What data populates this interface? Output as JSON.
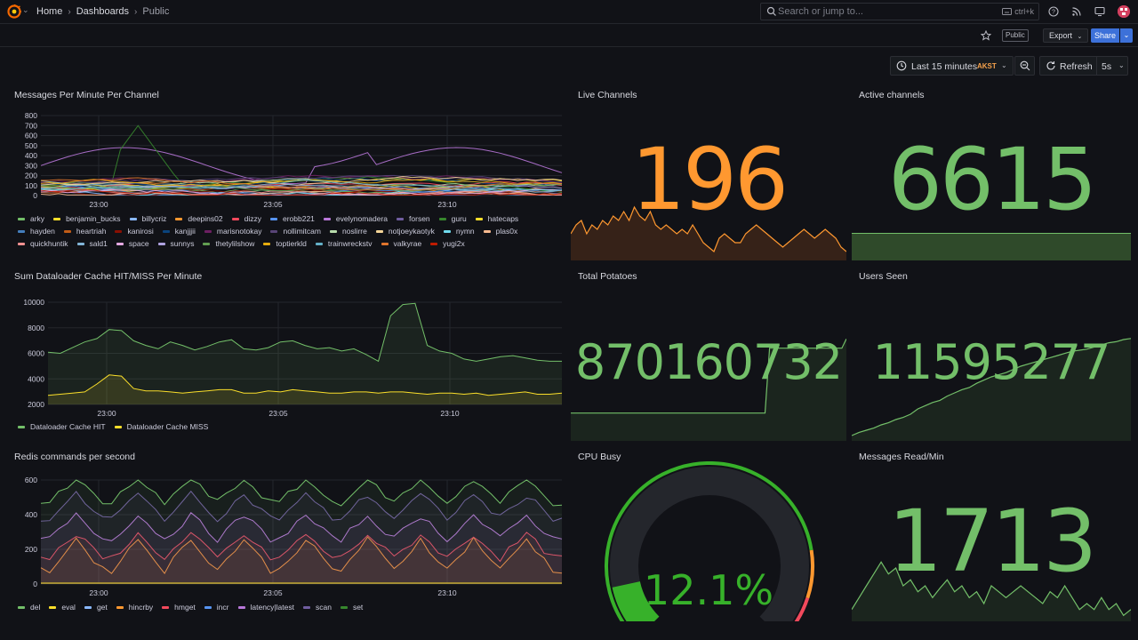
{
  "breadcrumb": {
    "home": "Home",
    "dashboards": "Dashboards",
    "current": "Public"
  },
  "search": {
    "placeholder": "Search or jump to...",
    "shortcut": "ctrl+k"
  },
  "toolbar": {
    "public_badge": "Public",
    "export_label": "Export",
    "share_label": "Share"
  },
  "time": {
    "range_label": "Last 15 minutes",
    "timezone": "AKST",
    "refresh_label": "Refresh",
    "interval": "5s"
  },
  "colors": {
    "green": "#73bf69",
    "orange": "#ff9830",
    "panel_bg": "#181b1f"
  },
  "panels": {
    "messages_per_minute": {
      "title": "Messages Per Minute Per Channel",
      "y_ticks": [
        "800",
        "700",
        "600",
        "500",
        "400",
        "300",
        "200",
        "100",
        "0"
      ],
      "x_ticks": [
        "23:00",
        "23:05",
        "23:10"
      ],
      "legend": [
        {
          "name": "arky",
          "color": "#73bf69"
        },
        {
          "name": "benjamin_bucks",
          "color": "#fade2a"
        },
        {
          "name": "billycriz",
          "color": "#8ab8ff"
        },
        {
          "name": "deepins02",
          "color": "#ff9830"
        },
        {
          "name": "dizzy",
          "color": "#f2495c"
        },
        {
          "name": "erobb221",
          "color": "#5794f2"
        },
        {
          "name": "evelynomadera",
          "color": "#b877d9"
        },
        {
          "name": "forsen",
          "color": "#705da0"
        },
        {
          "name": "guru",
          "color": "#37872d"
        },
        {
          "name": "hatecaps",
          "color": "#fade2a"
        },
        {
          "name": "hayden",
          "color": "#447ebc"
        },
        {
          "name": "heartriah",
          "color": "#c15c17"
        },
        {
          "name": "kanirosi",
          "color": "#890f02"
        },
        {
          "name": "kanjjjii",
          "color": "#0a437c"
        },
        {
          "name": "marisnotokay",
          "color": "#6d1f62"
        },
        {
          "name": "nollimitcam",
          "color": "#584477"
        },
        {
          "name": "noslirre",
          "color": "#b7dbab"
        },
        {
          "name": "notjoeykaotyk",
          "color": "#f4d598"
        },
        {
          "name": "nymn",
          "color": "#70dbed"
        },
        {
          "name": "plas0x",
          "color": "#f9ba8f"
        },
        {
          "name": "quickhuntik",
          "color": "#f29191"
        },
        {
          "name": "sald1",
          "color": "#82b5d8"
        },
        {
          "name": "space",
          "color": "#e5a8e2"
        },
        {
          "name": "sunnys",
          "color": "#aea2e0"
        },
        {
          "name": "thetylilshow",
          "color": "#629e51"
        },
        {
          "name": "toptierkld",
          "color": "#e5ac0e"
        },
        {
          "name": "trainwreckstv",
          "color": "#64b0c8"
        },
        {
          "name": "valkyrae",
          "color": "#e0752d"
        },
        {
          "name": "yugi2x",
          "color": "#bf1b00"
        }
      ]
    },
    "live_channels": {
      "title": "Live Channels",
      "value": "196"
    },
    "active_channels": {
      "title": "Active channels",
      "value": "6615"
    },
    "dataloader": {
      "title": "Sum Dataloader Cache HIT/MISS Per Minute",
      "y_ticks": [
        "10000",
        "8000",
        "6000",
        "4000",
        "2000"
      ],
      "x_ticks": [
        "23:00",
        "23:05",
        "23:10"
      ],
      "legend": [
        {
          "name": "Dataloader Cache HIT",
          "color": "#73bf69"
        },
        {
          "name": "Dataloader Cache MISS",
          "color": "#fade2a"
        }
      ]
    },
    "total_potatoes": {
      "title": "Total Potatoes",
      "value": "870160732"
    },
    "users_seen": {
      "title": "Users Seen",
      "value": "11595277"
    },
    "redis": {
      "title": "Redis commands per second",
      "y_ticks": [
        "600",
        "400",
        "200",
        "0"
      ],
      "x_ticks": [
        "23:00",
        "23:05",
        "23:10"
      ],
      "legend": [
        {
          "name": "del",
          "color": "#73bf69"
        },
        {
          "name": "eval",
          "color": "#fade2a"
        },
        {
          "name": "get",
          "color": "#8ab8ff"
        },
        {
          "name": "hincrby",
          "color": "#ff9830"
        },
        {
          "name": "hmget",
          "color": "#f2495c"
        },
        {
          "name": "incr",
          "color": "#5794f2"
        },
        {
          "name": "latency|latest",
          "color": "#b877d9"
        },
        {
          "name": "scan",
          "color": "#705da0"
        },
        {
          "name": "set",
          "color": "#37872d"
        }
      ]
    },
    "cpu_busy": {
      "title": "CPU Busy",
      "value": "12.1%",
      "percent": 12.1
    },
    "messages_read": {
      "title": "Messages Read/Min",
      "value": "1713"
    }
  }
}
